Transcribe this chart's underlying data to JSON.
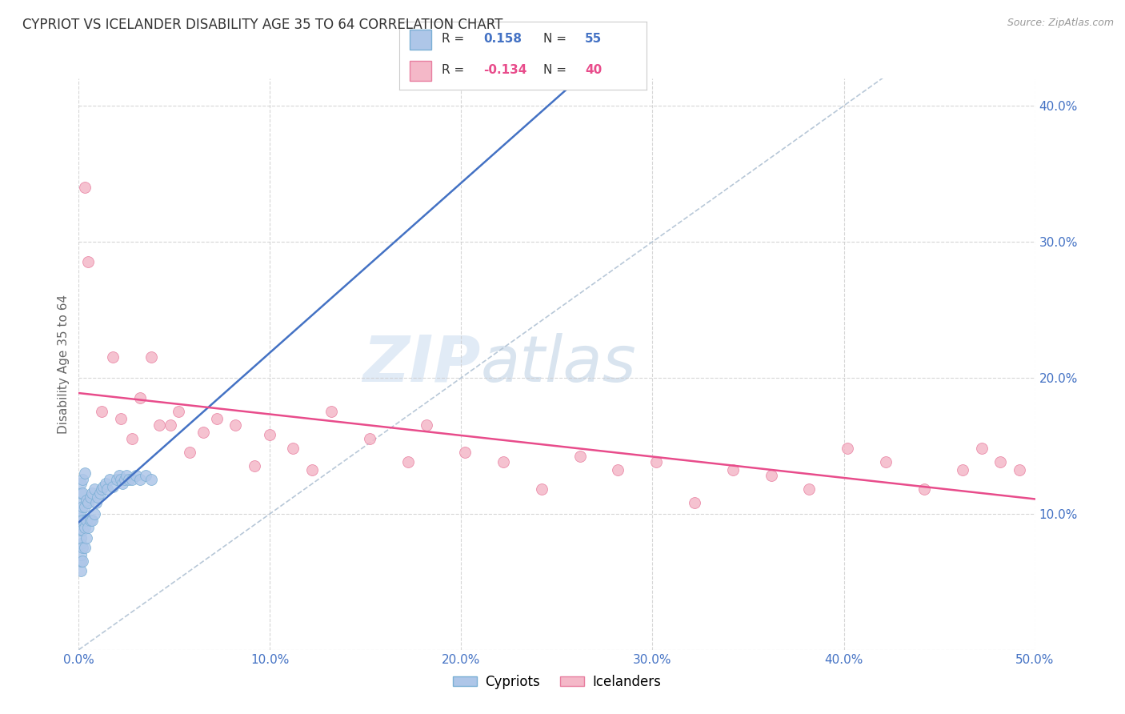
{
  "title": "CYPRIOT VS ICELANDER DISABILITY AGE 35 TO 64 CORRELATION CHART",
  "source_text": "Source: ZipAtlas.com",
  "ylabel": "Disability Age 35 to 64",
  "xlim": [
    0.0,
    0.5
  ],
  "ylim": [
    0.0,
    0.42
  ],
  "xticks": [
    0.0,
    0.1,
    0.2,
    0.3,
    0.4,
    0.5
  ],
  "xticklabels": [
    "0.0%",
    "10.0%",
    "20.0%",
    "30.0%",
    "40.0%",
    "50.0%"
  ],
  "yticks": [
    0.0,
    0.1,
    0.2,
    0.3,
    0.4
  ],
  "yticklabels": [
    "",
    "10.0%",
    "20.0%",
    "30.0%",
    "40.0%"
  ],
  "cypriot_color": "#aec6e8",
  "icelander_color": "#f4b8c8",
  "cypriot_edge": "#7aafd4",
  "icelander_edge": "#e87fa0",
  "trend_cypriot_color": "#4472c4",
  "trend_icelander_color": "#e84c8b",
  "R_cypriot": 0.158,
  "N_cypriot": 55,
  "R_icelander": -0.134,
  "N_icelander": 40,
  "legend_label_cypriot": "Cypriots",
  "legend_label_icelander": "Icelanders",
  "watermark_zip": "ZIP",
  "watermark_atlas": "atlas",
  "background_color": "#ffffff",
  "grid_color": "#cccccc",
  "cypriot_x": [
    0.001,
    0.001,
    0.001,
    0.001,
    0.001,
    0.001,
    0.001,
    0.001,
    0.001,
    0.001,
    0.001,
    0.001,
    0.002,
    0.002,
    0.002,
    0.002,
    0.002,
    0.002,
    0.002,
    0.003,
    0.003,
    0.003,
    0.003,
    0.004,
    0.004,
    0.004,
    0.005,
    0.005,
    0.006,
    0.006,
    0.007,
    0.007,
    0.008,
    0.008,
    0.009,
    0.01,
    0.011,
    0.012,
    0.013,
    0.014,
    0.015,
    0.016,
    0.018,
    0.02,
    0.021,
    0.022,
    0.023,
    0.024,
    0.025,
    0.026,
    0.028,
    0.03,
    0.032,
    0.035,
    0.038
  ],
  "cypriot_y": [
    0.058,
    0.065,
    0.07,
    0.078,
    0.082,
    0.088,
    0.092,
    0.097,
    0.102,
    0.108,
    0.115,
    0.122,
    0.065,
    0.075,
    0.088,
    0.095,
    0.105,
    0.115,
    0.125,
    0.075,
    0.09,
    0.105,
    0.13,
    0.082,
    0.095,
    0.11,
    0.09,
    0.108,
    0.095,
    0.112,
    0.095,
    0.115,
    0.1,
    0.118,
    0.108,
    0.112,
    0.115,
    0.118,
    0.12,
    0.122,
    0.118,
    0.125,
    0.12,
    0.125,
    0.128,
    0.125,
    0.122,
    0.125,
    0.128,
    0.125,
    0.125,
    0.128,
    0.125,
    0.128,
    0.125
  ],
  "icelander_x": [
    0.003,
    0.005,
    0.012,
    0.018,
    0.022,
    0.028,
    0.032,
    0.038,
    0.042,
    0.048,
    0.052,
    0.058,
    0.065,
    0.072,
    0.082,
    0.092,
    0.1,
    0.112,
    0.122,
    0.132,
    0.152,
    0.172,
    0.182,
    0.202,
    0.222,
    0.242,
    0.262,
    0.282,
    0.302,
    0.322,
    0.342,
    0.362,
    0.382,
    0.402,
    0.422,
    0.442,
    0.462,
    0.472,
    0.482,
    0.492
  ],
  "icelander_y": [
    0.34,
    0.285,
    0.175,
    0.215,
    0.17,
    0.155,
    0.185,
    0.215,
    0.165,
    0.165,
    0.175,
    0.145,
    0.16,
    0.17,
    0.165,
    0.135,
    0.158,
    0.148,
    0.132,
    0.175,
    0.155,
    0.138,
    0.165,
    0.145,
    0.138,
    0.118,
    0.142,
    0.132,
    0.138,
    0.108,
    0.132,
    0.128,
    0.118,
    0.148,
    0.138,
    0.118,
    0.132,
    0.148,
    0.138,
    0.132
  ]
}
